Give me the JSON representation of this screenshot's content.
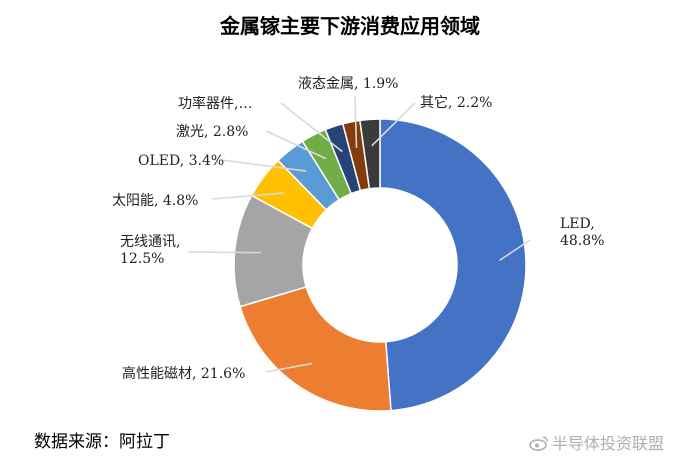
{
  "title": "金属镓主要下游消费应用领域",
  "source_note": "数据来源：阿拉丁",
  "watermark": "半导体投资联盟",
  "chart_data": {
    "type": "pie",
    "style": "donut",
    "title": "金属镓主要下游消费应用领域",
    "start_direction": "top",
    "direction": "clockwise",
    "slices": [
      {
        "name": "LED",
        "value": 48.8,
        "label_lines": [
          "LED,",
          "48.8%"
        ],
        "color": "#4472C4"
      },
      {
        "name": "高性能磁材",
        "value": 21.6,
        "label_lines": [
          "高性能磁材, 21.6%"
        ],
        "color": "#ED7D31"
      },
      {
        "name": "无线通讯",
        "value": 12.5,
        "label_lines": [
          "无线通讯,",
          "12.5%"
        ],
        "color": "#A5A5A5"
      },
      {
        "name": "太阳能",
        "value": 4.8,
        "label_lines": [
          "太阳能, 4.8%"
        ],
        "color": "#FFC000"
      },
      {
        "name": "OLED",
        "value": 3.4,
        "label_lines": [
          "OLED, 3.4%"
        ],
        "color": "#5B9BD5"
      },
      {
        "name": "激光",
        "value": 2.8,
        "label_lines": [
          "激光, 2.8%"
        ],
        "color": "#70AD47"
      },
      {
        "name": "功率器件",
        "value": 2.0,
        "label_lines": [
          "功率器件,…"
        ],
        "color": "#264478"
      },
      {
        "name": "液态金属",
        "value": 1.9,
        "label_lines": [
          "液态金属, 1.9%"
        ],
        "color": "#843C0C"
      },
      {
        "name": "其它",
        "value": 2.2,
        "label_lines": [
          "其它, 2.2%"
        ],
        "color": "#3B3B3B"
      }
    ]
  }
}
